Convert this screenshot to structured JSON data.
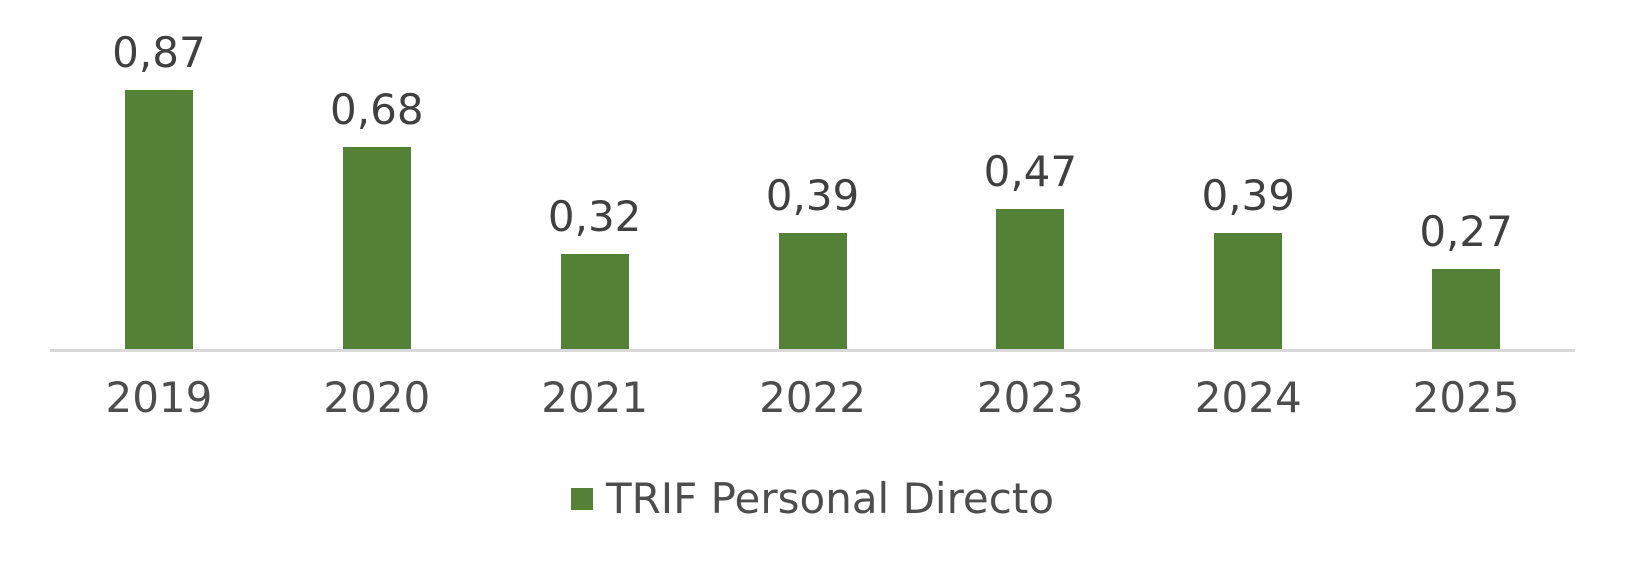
{
  "chart_data": {
    "type": "bar",
    "categories": [
      "2019",
      "2020",
      "2021",
      "2022",
      "2023",
      "2024",
      "2025"
    ],
    "values": [
      0.87,
      0.68,
      0.32,
      0.39,
      0.47,
      0.39,
      0.27
    ],
    "value_labels": [
      "0,87",
      "0,68",
      "0,32",
      "0,39",
      "0,47",
      "0,39",
      "0,27"
    ],
    "series": [
      {
        "name": "TRIF Personal Directo",
        "values": [
          0.87,
          0.68,
          0.32,
          0.39,
          0.47,
          0.39,
          0.27
        ]
      }
    ],
    "title": "",
    "xlabel": "",
    "ylabel": "",
    "ylim": [
      0,
      1.0
    ],
    "grid": false,
    "legend_position": "bottom",
    "bar_color": "#538135",
    "axis_line_color": "#d9d9d9",
    "data_label_color": "#404040",
    "axis_label_color": "#4d4d4d"
  },
  "legend": {
    "label": "TRIF Personal Directo",
    "marker_color": "#538135"
  }
}
